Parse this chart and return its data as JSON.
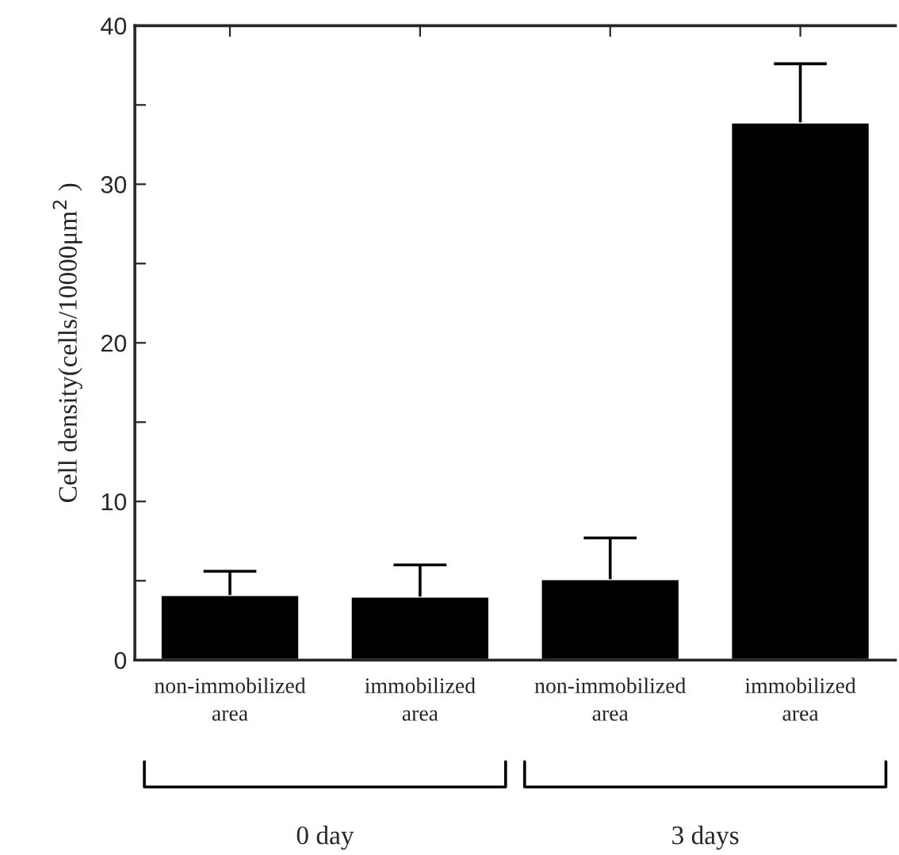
{
  "chart_data": {
    "type": "bar",
    "categories": [
      "non-immobilized area",
      "immobilized area",
      "non-immobilized area",
      "immobilized area"
    ],
    "values": [
      4.1,
      4.0,
      5.1,
      33.9
    ],
    "errors": [
      [
        4.1,
        5.6
      ],
      [
        4.0,
        6.0
      ],
      [
        5.1,
        7.7
      ],
      [
        33.9,
        37.6
      ]
    ],
    "color": "#000000",
    "ylabel": "Cell density(cells/10000μm$^{2}$ )",
    "ylim": [
      0,
      40
    ],
    "yticks": [
      0,
      {
        "value": 5,
        "label": null
      },
      10,
      {
        "value": 15,
        "label": null
      },
      20,
      {
        "value": 25,
        "label": null
      },
      30,
      {
        "value": 35,
        "label": null
      },
      40
    ],
    "annotations": [
      "0 day",
      "3 days"
    ],
    "grid": false,
    "legend": false
  }
}
